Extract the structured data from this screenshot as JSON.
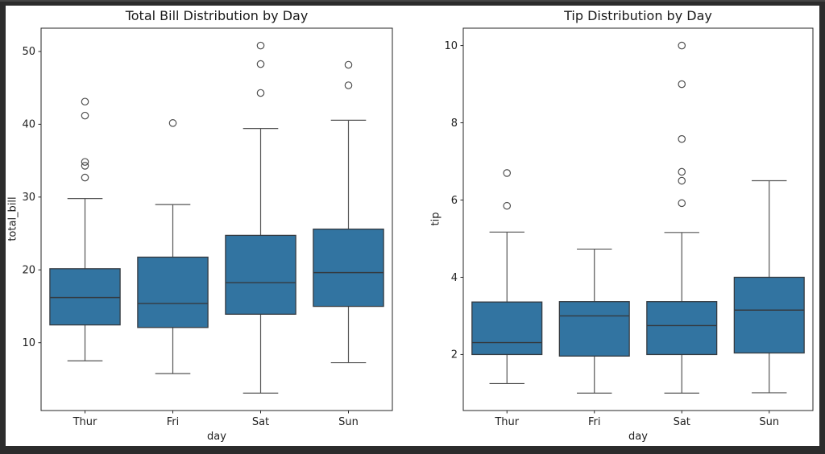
{
  "window": {
    "background": "#2c2c2c",
    "canvas_background": "#ffffff"
  },
  "style": {
    "box_fill": "#3274a1",
    "box_edge": "#343a40",
    "median_color": "#343a40",
    "whisker_color": "#555555",
    "outlier_stroke": "#4f4f4f",
    "spine_color": "#262626",
    "text_color": "#1f1f1f",
    "title_color": "#1a1a1a"
  },
  "chart_data": [
    {
      "type": "boxplot",
      "title": "Total Bill Distribution by Day",
      "xlabel": "day",
      "ylabel": "total_bill",
      "categories": [
        "Thur",
        "Fri",
        "Sat",
        "Sun"
      ],
      "ylim": [
        0.68,
        53.2
      ],
      "yticks": [
        10,
        20,
        30,
        40,
        50
      ],
      "grid": false,
      "legend": null,
      "boxes": [
        {
          "category": "Thur",
          "whisker_low": 7.51,
          "q1": 12.44,
          "median": 16.2,
          "q3": 20.16,
          "whisker_high": 29.8,
          "outliers": [
            32.68,
            34.3,
            34.83,
            41.19,
            43.11
          ]
        },
        {
          "category": "Fri",
          "whisker_low": 5.75,
          "q1": 12.09,
          "median": 15.38,
          "q3": 21.75,
          "whisker_high": 28.97,
          "outliers": [
            40.17
          ]
        },
        {
          "category": "Sat",
          "whisker_low": 3.07,
          "q1": 13.91,
          "median": 18.24,
          "q3": 24.74,
          "whisker_high": 39.42,
          "outliers": [
            44.3,
            48.27,
            50.81
          ]
        },
        {
          "category": "Sun",
          "whisker_low": 7.25,
          "q1": 14.99,
          "median": 19.63,
          "q3": 25.6,
          "whisker_high": 40.55,
          "outliers": [
            45.35,
            48.17
          ]
        }
      ]
    },
    {
      "type": "boxplot",
      "title": "Tip Distribution by Day",
      "xlabel": "day",
      "ylabel": "tip",
      "categories": [
        "Thur",
        "Fri",
        "Sat",
        "Sun"
      ],
      "ylim": [
        0.55,
        10.45
      ],
      "yticks": [
        2,
        4,
        6,
        8,
        10
      ],
      "grid": false,
      "legend": null,
      "boxes": [
        {
          "category": "Thur",
          "whisker_low": 1.25,
          "q1": 2.0,
          "median": 2.31,
          "q3": 3.36,
          "whisker_high": 5.17,
          "outliers": [
            5.85,
            6.7
          ]
        },
        {
          "category": "Fri",
          "whisker_low": 1.0,
          "q1": 1.96,
          "median": 3.0,
          "q3": 3.37,
          "whisker_high": 4.73,
          "outliers": []
        },
        {
          "category": "Sat",
          "whisker_low": 1.0,
          "q1": 2.0,
          "median": 2.75,
          "q3": 3.37,
          "whisker_high": 5.16,
          "outliers": [
            5.92,
            6.5,
            6.73,
            7.58,
            9.0,
            10.0
          ]
        },
        {
          "category": "Sun",
          "whisker_low": 1.01,
          "q1": 2.04,
          "median": 3.15,
          "q3": 4.0,
          "whisker_high": 6.5,
          "outliers": []
        }
      ]
    }
  ]
}
